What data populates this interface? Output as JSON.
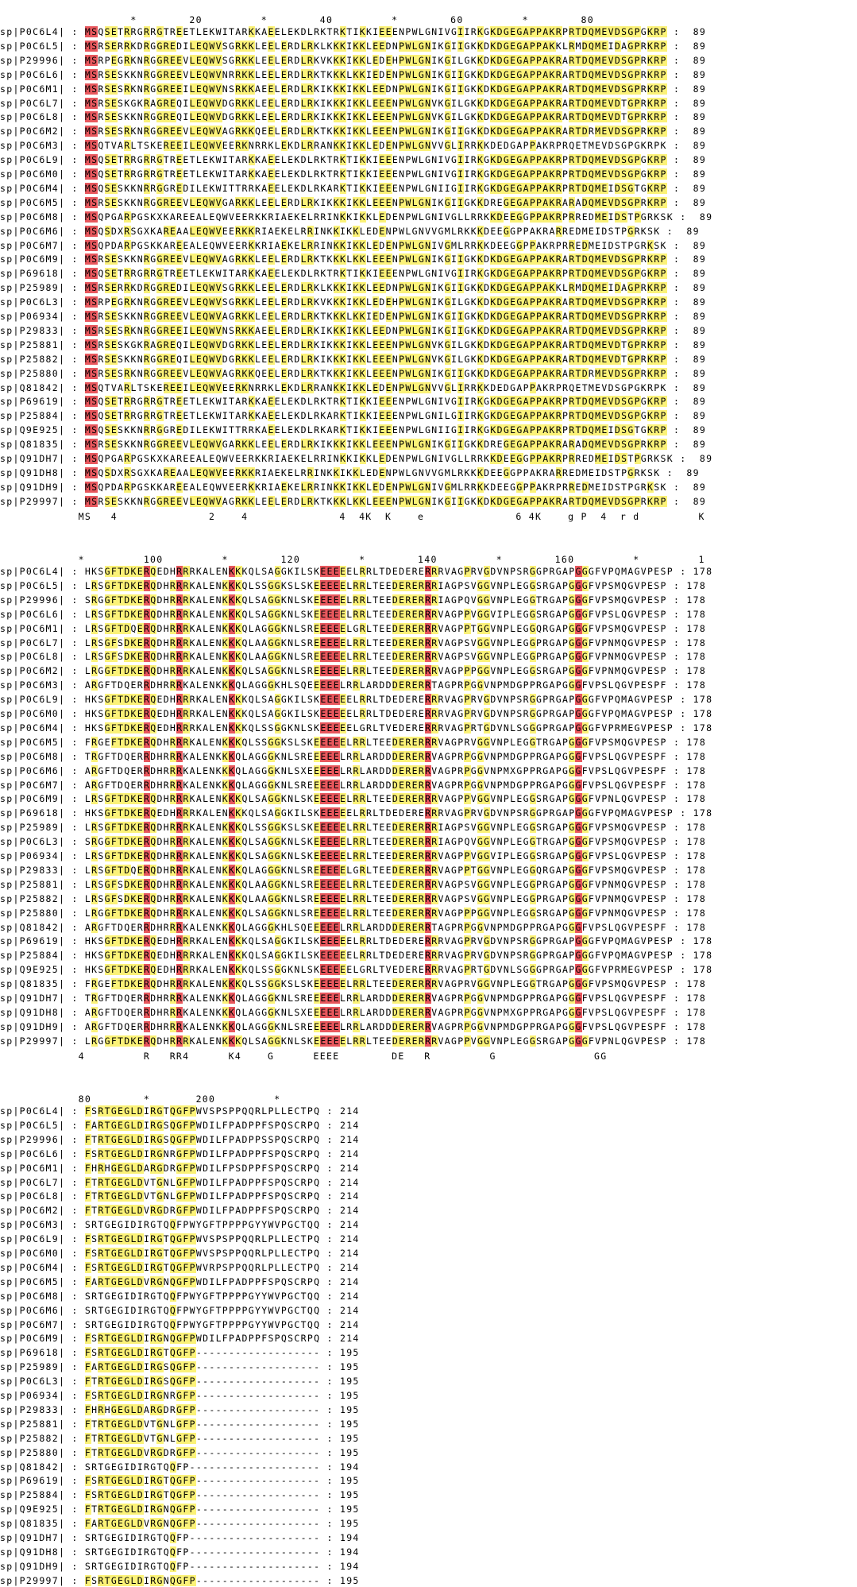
{
  "colors": {
    "conserved": "#e8575d",
    "partial": "#fbf278"
  },
  "blocks": [
    {
      "ruler": "                    *        20         *        40         *        60         *        80",
      "end_default": "89",
      "rows": [
        [
          "sp|P0C6L4|",
          "MSQSETRRGRRGTREETLEKWITARKKAEELEKDLRKTRKTIKKIEEENPWLGNIVGIIRKGKDGEGAPPAKRPRTDQMEVDSGPGKRP"
        ],
        [
          "sp|P0C6L5|",
          "MSRSERRKDRGGREDILEQWVSGRKKLEELERDLRKLKKKIKKLEEDNPWLGNIKGIIGKKDKDGEGAPPAKKLRMDQMEIDAGPRKRP"
        ],
        [
          "sp|P29996|",
          "MSRPEGRKNRGGREEVLEQWVSGRKKLEELERDLRKVKKKIKKLEDEHPWLGNIKGILGKKDKDGEGAPPAKRARTDQMEVDSGPRKRP"
        ],
        [
          "sp|P0C6L6|",
          "MSRSESKKNRGGREEVLEQWVNRRKKLEELERDLRKTKKKLKKIEDENPWLGNIKGIIGKKDKDGEGAPPAKRARTDQMEVDSGPRKRP"
        ],
        [
          "sp|P0C6M1|",
          "MSRSESRKNRGGREEILEQWVNSRKKAEELERDLRKIKKKIKKLEEDNPWLGNIKGIIGKKDKDGEGAPPAKRARTDQMEVDSGPRKRP"
        ],
        [
          "sp|P0C6L7|",
          "MSRSESKGKRAGREQILEQWVDGRKKLEELERDLRKIKKKIKKLEEENPWLGNVKGILGKKDKDGEGAPPAKRARTDQMEVDTGPRKRP"
        ],
        [
          "sp|P0C6L8|",
          "MSRSESKKNRGGREQILEQWVDGRKKLEELERDLRKIKKKIKKLEEENPWLGNVKGILGKKDKDGEGAPPAKRARTDQMEVDTGPRKRP"
        ],
        [
          "sp|P0C6M2|",
          "MSRSESRKNRGGREEVLEQWVAGRKKQEELERDLRKTKKKIKKLEEENPWLGNIKGIIGKKDKDGEGAPPAKRARTDRMEVDSGPRKRP"
        ],
        [
          "sp|P0C6M3|",
          "MSQTVARLTSKEREEILEQWVEERKNRRKLEKDLRRANKKIKKLEDENPWLGNVVGLIRRKKDEDGAPPAKRPRQETMEVDSGPGKRPK"
        ],
        [
          "sp|P0C6L9|",
          "MSQSETRRGRRGTREETLEKWITARKKAEELEKDLRKTRKTIKKIEEENPWLGNIVGIIRKGKDGEGAPPAKRPRTDQMEVDSGPGKRP"
        ],
        [
          "sp|P0C6M0|",
          "MSQSETRRGRRGTREETLEKWITARKKAEELEKDLRKTRKTIKKIEEENPWLGNIVGIIRKGKDGEGAPPAKRPRTDQMEVDSGPGKRP"
        ],
        [
          "sp|P0C6M4|",
          "MSQSESKKNRRGGREDILEKWITTRRKAEELEKDLRKARKTIKKIEEENPWLGNIIGIIRKGKDGEGAPPAKRPRTDQMEIDSGTGKRP"
        ],
        [
          "sp|P0C6M5|",
          "MSRSESKKNRGGREEVLEQWVGARKKLEELERDLRKIKKKIKKLEEENPWLGNIKGIIGKKDREGEGAPPAKRARADQMEVDSGPRKRP"
        ],
        [
          "sp|P0C6M8|",
          "MSQPGARPGSKXKAREEALEQWVEERKKRIAEKELRRINKKIKKLEDENPWLGNIVGLLRRKKDEEGGPPAKRPRREDMEIDSTPGRKSK"
        ],
        [
          "sp|P0C6M6|",
          "MSQSDXRSGXKAREAALEQWVEERKKRIAEKELRRINKKIKKLEDENPWLGNVVGMLRKKKDEEGGPPAKRARREDMEIDSTPGRKSK"
        ],
        [
          "sp|P0C6M7|",
          "MSQPDARPGSKKAREEALEQWVEERKKRIAEKELRRINKKIKKLEDENPWLGNIVGMLRRKKDEEGGPPAKRPRREDMEIDSTPGRKSK"
        ],
        [
          "sp|P0C6M9|",
          "MSRSESKKNRGGREEVLEQWVAGRKKLEELERDLRKTKKKLKKLEEENPWLGNIKGIIGKKDKDGEGAPPAKRARTDQMEVDSGPRKRP"
        ],
        [
          "sp|P69618|",
          "MSQSETRRGRRGTREETLEKWITARKKAEELEKDLRKTRKTIKKIEEENPWLGNIVGIIRKGKDGEGAPPAKRPRTDQMEVDSGPGKRP"
        ],
        [
          "sp|P25989|",
          "MSRSERRKDRGGREDILEQWVSGRKKLEELERDLRKLKKKIKKLEEDNPWLGNIKGIIGKKDKDGEGAPPAKKLRMDQMEIDAGPRKRP"
        ],
        [
          "sp|P0C6L3|",
          "MSRPEGRKNRGGREEVLEQWVSGRKKLEELERDLRKVKKKIKKLEDEHPWLGNIKGILGKKDKDGEGAPPAKRARTDQMEVDSGPRKRP"
        ],
        [
          "sp|P06934|",
          "MSRSESKKNRGGREEVLEQWVAGRKKLEELERDLRKTKKKLKKIEDENPWLGNIKGIIGKKDKDGEGAPPAKRARTDQMEVDSGPRKRP"
        ],
        [
          "sp|P29833|",
          "MSRSESRKNRGGREEILEQWVNSRKKAEELERDLRKIKKKIKKLEEDNPWLGNIKGIIGKKDKDGEGAPPAKRARTDQMEVDSGPRKRP"
        ],
        [
          "sp|P25881|",
          "MSRSESKGKRAGREQILEQWVDGRKKLEELERDLRKIKKKIKKLEEENPWLGNVKGILGKKDKDGEGAPPAKRARTDQMEVDTGPRKRP"
        ],
        [
          "sp|P25882|",
          "MSRSESKKNRGGREQILEQWVDGRKKLEELERDLRKIKKKIKKLEEENPWLGNVKGILGKKDKDGEGAPPAKRARTDQMEVDTGPRKRP"
        ],
        [
          "sp|P25880|",
          "MSRSESRKNRGGREEVLEQWVAGRKKQEELERDLRKTKKKIKKLEEENPWLGNIKGIIGKKDKDGEGAPPAKRARTDRMEVDSGPRKRP"
        ],
        [
          "sp|Q81842|",
          "MSQTVARLTSKEREEILEQWVEERKNRRKLEKDLRRANKKIKKLEDENPWLGNVVGLIRRKKDEDGAPPAKRPRQETMEVDSGPGKRPK"
        ],
        [
          "sp|P69619|",
          "MSQSETRRGRRGTREETLEKWITARKKAEELEKDLRKTRKTIKKIEEENPWLGNIVGIIRKGKDGEGAPPAKRPRTDQMEVDSGPGKRP"
        ],
        [
          "sp|P25884|",
          "MSQSETRRGRRGTREETLEKWITARKKAEELEKDLRKARKTIKKIEEENPWLGNILGIIRKGKDGEGAPPAKRPRTDQMEVDSGPGKRP"
        ],
        [
          "sp|Q9E925|",
          "MSQSESKKNRRGGREDILEKWITTRRKAEELEKDLRKARKTIKKIEEENPWLGNIIGIIRKGKDGEGAPPAKRPRTDQMEIDSGTGKRP"
        ],
        [
          "sp|Q81835|",
          "MSRSESKKNRGGREEVLEQWVGARKKLEELERDLRKIKKKIKKLEEENPWLGNIKGIIGKKDREGEGAPPAKRARADQMEVDSGPRKRP"
        ],
        [
          "sp|Q91DH7|",
          "MSQPGARPGSKXKAREEALEQWVEERKKRIAEKELRRINKKIKKLEDENPWLGNIVGLLRRKKDEEGGPPAKRPRREDMEIDSTPGRKSK"
        ],
        [
          "sp|Q91DH8|",
          "MSQSDXRSGXKAREAALEQWVEERKKRIAEKELRRINKKIKKLEDENPWLGNVVGMLRKKKDEEGGPPAKRARREDMEIDSTPGRKSK"
        ],
        [
          "sp|Q91DH9|",
          "MSQPDARPGSKKAREEALEQWVEERKKRIAEKELRRINKKIKKLEDENPWLGNIVGMLRRKKDEEGGPPAKRPRREDMEIDSTPGRKSK"
        ],
        [
          "sp|P29997|",
          "MSRSESKKNRGGREEVLEQWVAGRKKLEELERDLRKTKKKLKKLEEENPWLGNIKGIIGKKDKDGEGAPPAKRARTDQMEVDSGPRKRP"
        ]
      ],
      "consensus": "            MS   4              2    4              4  4K  K    e              6 4K    g P  4  r d         K"
    },
    {
      "ruler": "            *         100         *        120         *        140         *        160         *         1",
      "end_default": "178",
      "rows": [
        [
          "sp|P0C6L4|",
          "HKSGFTDKERQEDHRRRKALENKKKQLSAGGKILSKEEEEELRRLTDEDERERRRVAGPRVGDVNPSRGGPRGAPGGGFVPQMAGVPESP"
        ],
        [
          "sp|P0C6L5|",
          "LRSGFTDKERQDHRRRKALENKKKQLSSGGKSLSKEEEEELRRLTEEDERERRRIAGPSVGGVNPLEGGSRGAPGGGFVPSMQGVPESP"
        ],
        [
          "sp|P29996|",
          "SRGGFTDKERQDHRRRKALENKKKQLSAGGKNLSKEEEEELRRLTEEDERERRRIAGPQVGGVNPLEGGTRGAPGGGFVPSMQGVPESP"
        ],
        [
          "sp|P0C6L6|",
          "LRSGFTDKERQDHRRRKALENKKKQLSAGGKNLSKEEEEELRRLTEEDERERRRVAGPPVGGVIPLEGGSRGAPGGGFVPSLQGVPESP"
        ],
        [
          "sp|P0C6M1|",
          "LRSGFTDQERQDHRRRKALENKKKQLAGGGKNLSREEEEELGRLTEEDERERRRVAGPPTGGVNPLEGGQRGAPGGGFVPSMQGVPESP"
        ],
        [
          "sp|P0C6L7|",
          "LRSGFSDKERQDHRRRKALENKKKQLAAGGKNLSREEEEELRRLTEEDERERRRVAGPSVGGVNPLEGGPRGAPGGGFVPNMQGVPESP"
        ],
        [
          "sp|P0C6L8|",
          "LRSGFSDKERQDHRRRKALENKKKQLAAGGKNLSREEEEELRRLTEEDERERRRVAGPSVGGVNPLEGGPRGAPGGGFVPNMQGVPESP"
        ],
        [
          "sp|P0C6M2|",
          "LRGGFTDKERQDHRRRKALENKKKQLSAGGKNLSREEEEELRRLTEEDERERRRVAGPPPGGVNPLEGGSRGAPGGGFVPNMQGVPESP"
        ],
        [
          "sp|P0C6M3|",
          "ARGFTDQERRDHRRRKALENKKKQLAGGGKHLSQEEEEELRRLARDDDERERRTAGPRPGGVNPMDGPPRGAPGGGFVPSLQGVPESPF"
        ],
        [
          "sp|P0C6L9|",
          "HKSGFTDKERQEDHRRRKALENKKKQLSAGGKILSKEEEEELRRLTDEDERERRRVAGPRVGDVNPSRGGPRGAPGGGFVPQMAGVPESP"
        ],
        [
          "sp|P0C6M0|",
          "HKSGFTDKERQEDHRRRKALENKKKQLSAGGKILSKEEEEELRRLTDEDERERRRVAGPRVGDVNPSRGGPRGAPGGGFVPQMAGVPESP"
        ],
        [
          "sp|P0C6M4|",
          "HKSGFTDKERQEDHRRRKALENKKKQLSSGGKNLSKEEEEELGRLTVEDERERRRVAGPRTGDVNLSGGGPRGAPGGGFVPRMEGVPESP"
        ],
        [
          "sp|P0C6M5|",
          "FRGEFTDKERQDHRRRKALENKKKQLSSGGKSLSKEEEEELRRLTEEDERERRRVAGPRVGGVNPLEGGTRGAPGGGFVPSMQGVPESP"
        ],
        [
          "sp|P0C6M8|",
          "TRGFTDQERRDHRRRKALENKKKQLAGGGKNLSREEEEELRRLARDDDERERRVAGPRPGGVNPMDGPPRGAPGGGFVPSLQGVPESPF"
        ],
        [
          "sp|P0C6M6|",
          "ARGFTDQERRDHRRRKALENKKKQLAGGGKNLSXEEEEELRRLARDDDERERRVAGPRPGGVNPMXGPPRGAPGGGFVPSLQGVPESPF"
        ],
        [
          "sp|P0C6M7|",
          "ARGFTDQERRDHRRRKALENKKKQLAGGGKNLSREEEEELRRLARDDDERERRVAGPRPGGVNPMDGPPRGAPGGGFVPSLQGVPESPF"
        ],
        [
          "sp|P0C6M9|",
          "LRSGFTDKERQDHRRRKALENKKKQLSAGGKNLSKEEEEELRRLTEEDERERRRVAGPPVGGVNPLEGGSRGAPGGGFVPNLQGVPESP"
        ],
        [
          "sp|P69618|",
          "HKSGFTDKERQEDHRRRKALENKKKQLSAGGKILSKEEEEELRRLTDEDERERRRVAGPRVGDVNPSRGGPRGAPGGGFVPQMAGVPESP"
        ],
        [
          "sp|P25989|",
          "LRSGFTDKERQDHRRRKALENKKKQLSSGGKSLSKEEEEELRRLTEEDERERRRIAGPSVGGVNPLEGGSRGAPGGGFVPSMQGVPESP"
        ],
        [
          "sp|P0C6L3|",
          "SRGGFTDKERQDHRRRKALENKKKQLSAGGKNLSKEEEEELRRLTEEDERERRRIAGPQVGGVNPLEGGTRGAPGGGFVPSMQGVPESP"
        ],
        [
          "sp|P06934|",
          "LRSGFTDKERQDHRRRKALENKKKQLSAGGKNLSKEEEEELRRLTEEDERERRRVAGPPVGGVIPLEGGSRGAPGGGFVPSLQGVPESP"
        ],
        [
          "sp|P29833|",
          "LRSGFTDQERQDHRRRKALENKKKQLAGGGKNLSREEEEELGRLTEEDERERRRVAGPPTGGVNPLEGGQRGAPGGGFVPSMQGVPESP"
        ],
        [
          "sp|P25881|",
          "LRSGFSDKERQDHRRRKALENKKKQLAAGGKNLSREEEEELRRLTEEDERERRRVAGPSVGGVNPLEGGPRGAPGGGFVPNMQGVPESP"
        ],
        [
          "sp|P25882|",
          "LRSGFSDKERQDHRRRKALENKKKQLAAGGKNLSREEEEELRRLTEEDERERRRVAGPSVGGVNPLEGGPRGAPGGGFVPNMQGVPESP"
        ],
        [
          "sp|P25880|",
          "LRGGFTDKERQDHRRRKALENKKKQLSAGGKNLSREEEEELRRLTEEDERERRRVAGPPPGGVNPLEGGSRGAPGGGFVPNMQGVPESP"
        ],
        [
          "sp|Q81842|",
          "ARGFTDQERRDHRRRKALENKKKQLAGGGKHLSQEEEEELRRLARDDDERERRTAGPRPGGVNPMDGPPRGAPGGGFVPSLQGVPESPF"
        ],
        [
          "sp|P69619|",
          "HKSGFTDKERQEDHRRRKALENKKKQLSAGGKILSKEEEEELRRLTDEDERERRRVAGPRVGDVNPSRGGPRGAPGGGFVPQMAGVPESP"
        ],
        [
          "sp|P25884|",
          "HKSGFTDKERQEDHRRRKALENKKKQLSAGGKILSKEEEEELRRLTDEDERERRRVAGPRVGDVNPSRGGPRGAPGGGFVPQMAGVPESP"
        ],
        [
          "sp|Q9E925|",
          "HKSGFTDKERQEDHRRRKALENKKKQLSSGGKNLSKEEEEELGRLTVEDERERRRVAGPRTGDVNLSGGGPRGAPGGGFVPRMEGVPESP"
        ],
        [
          "sp|Q81835|",
          "FRGEFTDKERQDHRRRKALENKKKQLSSGGKSLSKEEEEELRRLTEEDERERRRVAGPRVGGVNPLEGGTRGAPGGGFVPSMQGVPESP"
        ],
        [
          "sp|Q91DH7|",
          "TRGFTDQERRDHRRRKALENKKKQLAGGGKNLSREEEEELRRLARDDDERERRVAGPRPGGVNPMDGPPRGAPGGGFVPSLQGVPESPF"
        ],
        [
          "sp|Q91DH8|",
          "ARGFTDQERRDHRRRKALENKKKQLAGGGKNLSXEEEEELRRLARDDDERERRVAGPRPGGVNPMXGPPRGAPGGGFVPSLQGVPESPF"
        ],
        [
          "sp|Q91DH9|",
          "ARGFTDQERRDHRRRKALENKKKQLAGGGKNLSREEEEELRRLARDDDERERRVAGPRPGGVNPMDGPPRGAPGGGFVPSLQGVPESPF"
        ],
        [
          "sp|P29997|",
          "LRGGFTDKERQDHRRRKALENKKKQLSAGGKNLSKEEEEELRRLTEEDERERRRVAGPPVGGVNPLEGGSRGAPGGGFVPNLQGVPESP"
        ]
      ],
      "consensus": "            4         R   RR4      K4    G      EEEE        DE   R         G               GG"
    },
    {
      "ruler": "            80        *       200         *",
      "rows": [
        [
          "sp|P0C6L4|",
          "FSRTGEGLDIRGTQGFPWVSPSPPQQRLPLLECTPQ",
          "214"
        ],
        [
          "sp|P0C6L5|",
          "FARTGEGLDIRGSQGFPWDILFPADPPFSPQSCRPQ",
          "214"
        ],
        [
          "sp|P29996|",
          "FTRTGEGLDIRGSQGFPWDILFPADPPSSPQSCRPQ",
          "214"
        ],
        [
          "sp|P0C6L6|",
          "FSRTGEGLDIRGNRGFPWDILFPADPPFSPQSCRPQ",
          "214"
        ],
        [
          "sp|P0C6M1|",
          "FHRHGEGLDARGDRGFPWDILFPSDPPFSPQSCRPQ",
          "214"
        ],
        [
          "sp|P0C6L7|",
          "FTRTGEGLDVTGNLGFPWDILFPADPPFSPQSCRPQ",
          "214"
        ],
        [
          "sp|P0C6L8|",
          "FTRTGEGLDVTGNLGFPWDILFPADPPFSPQSCRPQ",
          "214"
        ],
        [
          "sp|P0C6M2|",
          "FTRTGEGLDVRGDRGFPWDILFPADPPFSPQSCRPQ",
          "214"
        ],
        [
          "sp|P0C6M3|",
          "SRTGEGIDIRGTQQFPWYGFTPPPPGYYWVPGCTQQ",
          "214"
        ],
        [
          "sp|P0C6L9|",
          "FSRTGEGLDIRGTQGFPWVSPSPPQQRLPLLECTPQ",
          "214"
        ],
        [
          "sp|P0C6M0|",
          "FSRTGEGLDIRGTQGFPWVSPSPPQQRLPLLECTPQ",
          "214"
        ],
        [
          "sp|P0C6M4|",
          "FSRTGEGLDIRGTQGFPWVRPSPPQQRLPLLECTPQ",
          "214"
        ],
        [
          "sp|P0C6M5|",
          "FARTGEGLDVRGNQGFPWDILFPADPPFSPQSCRPQ",
          "214"
        ],
        [
          "sp|P0C6M8|",
          "SRTGEGIDIRGTQQFPWYGFTPPPPGYYWVPGCTQQ",
          "214"
        ],
        [
          "sp|P0C6M6|",
          "SRTGEGIDIRGTQQFPWYGFTPPPPGYYWVPGCTQQ",
          "214"
        ],
        [
          "sp|P0C6M7|",
          "SRTGEGIDIRGTQQFPWYGFTPPPPGYYWVPGCTQQ",
          "214"
        ],
        [
          "sp|P0C6M9|",
          "FSRTGEGLDIRGNQGFPWDILFPADPPFSPQSCRPQ",
          "214"
        ],
        [
          "sp|P69618|",
          "FSRTGEGLDIRGTQGFP-------------------",
          "195"
        ],
        [
          "sp|P25989|",
          "FARTGEGLDIRGSQGFP-------------------",
          "195"
        ],
        [
          "sp|P0C6L3|",
          "FTRTGEGLDIRGSQGFP-------------------",
          "195"
        ],
        [
          "sp|P06934|",
          "FSRTGEGLDIRGNRGFP-------------------",
          "195"
        ],
        [
          "sp|P29833|",
          "FHRHGEGLDARGDRGFP-------------------",
          "195"
        ],
        [
          "sp|P25881|",
          "FTRTGEGLDVTGNLGFP-------------------",
          "195"
        ],
        [
          "sp|P25882|",
          "FTRTGEGLDVTGNLGFP-------------------",
          "195"
        ],
        [
          "sp|P25880|",
          "FTRTGEGLDVRGDRGFP-------------------",
          "195"
        ],
        [
          "sp|Q81842|",
          "SRTGEGIDIRGTQQFP--------------------",
          "194"
        ],
        [
          "sp|P69619|",
          "FSRTGEGLDIRGTQGFP-------------------",
          "195"
        ],
        [
          "sp|P25884|",
          "FSRTGEGLDIRGTQGFP-------------------",
          "195"
        ],
        [
          "sp|Q9E925|",
          "FTRTGEGLDIRGNQGFP-------------------",
          "195"
        ],
        [
          "sp|Q81835|",
          "FARTGEGLDVRGNQGFP-------------------",
          "195"
        ],
        [
          "sp|Q91DH7|",
          "SRTGEGIDIRGTQQFP--------------------",
          "194"
        ],
        [
          "sp|Q91DH8|",
          "SRTGEGIDIRGTQQFP--------------------",
          "194"
        ],
        [
          "sp|Q91DH9|",
          "SRTGEGIDIRGTQQFP--------------------",
          "194"
        ],
        [
          "sp|P29997|",
          "FSRTGEGLDIRGNQGFP-------------------",
          "195"
        ]
      ]
    }
  ]
}
